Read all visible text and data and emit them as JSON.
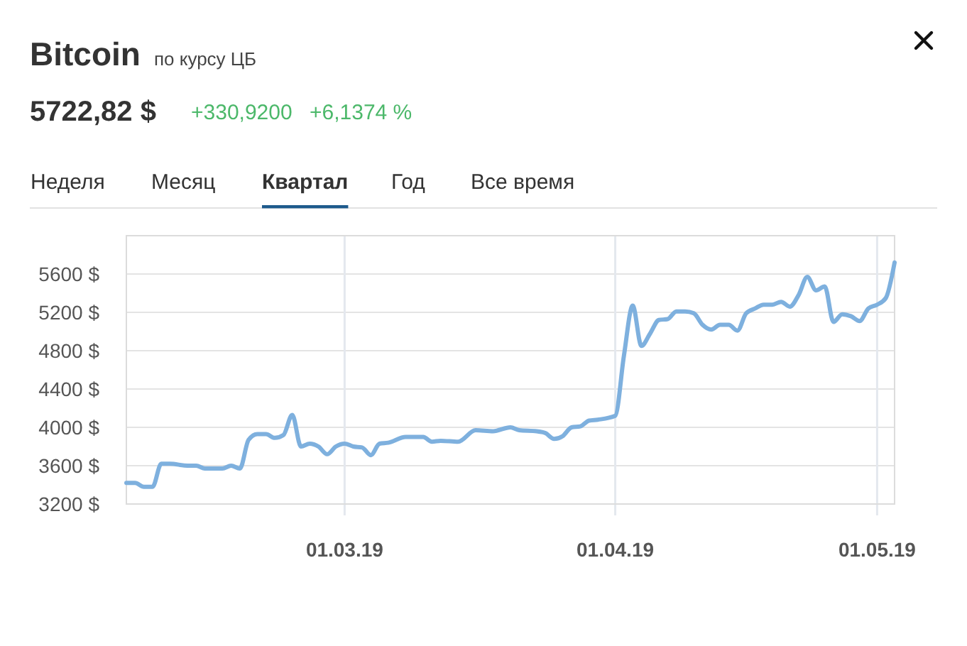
{
  "chart_data": {
    "type": "line",
    "title": "Bitcoin",
    "subtitle": "по курсу ЦБ",
    "annotations": [
      "5722,82 $",
      "+330,9200",
      "+6,1374 %",
      "Неделя",
      "Месяц",
      "Квартал",
      "Год",
      "Все время"
    ],
    "x": [
      "2019-02-04",
      "2019-02-05",
      "2019-02-06",
      "2019-02-07",
      "2019-02-08",
      "2019-02-09",
      "2019-02-11",
      "2019-02-12",
      "2019-02-13",
      "2019-02-15",
      "2019-02-16",
      "2019-02-17",
      "2019-02-18",
      "2019-02-19",
      "2019-02-20",
      "2019-02-21",
      "2019-02-22",
      "2019-02-23",
      "2019-02-24",
      "2019-02-25",
      "2019-02-26",
      "2019-02-27",
      "2019-02-28",
      "2019-03-01",
      "2019-03-02",
      "2019-03-03",
      "2019-03-04",
      "2019-03-05",
      "2019-03-06",
      "2019-03-08",
      "2019-03-10",
      "2019-03-11",
      "2019-03-12",
      "2019-03-14",
      "2019-03-16",
      "2019-03-18",
      "2019-03-20",
      "2019-03-21",
      "2019-03-23",
      "2019-03-24",
      "2019-03-25",
      "2019-03-26",
      "2019-03-27",
      "2019-03-28",
      "2019-03-29",
      "2019-03-30",
      "2019-04-01",
      "2019-04-02",
      "2019-04-03",
      "2019-04-04",
      "2019-04-05",
      "2019-04-06",
      "2019-04-07",
      "2019-04-08",
      "2019-04-09",
      "2019-04-10",
      "2019-04-11",
      "2019-04-12",
      "2019-04-13",
      "2019-04-14",
      "2019-04-15",
      "2019-04-16",
      "2019-04-17",
      "2019-04-18",
      "2019-04-19",
      "2019-04-20",
      "2019-04-21",
      "2019-04-22",
      "2019-04-23",
      "2019-04-24",
      "2019-04-25",
      "2019-04-26",
      "2019-04-27",
      "2019-04-28",
      "2019-04-29",
      "2019-04-30",
      "2019-05-01",
      "2019-05-02",
      "2019-05-03"
    ],
    "series": [
      {
        "color": "#7eb0de",
        "values": [
          3420,
          3420,
          3380,
          3380,
          3620,
          3620,
          3600,
          3600,
          3570,
          3570,
          3600,
          3570,
          3870,
          3930,
          3930,
          3890,
          3920,
          4130,
          3800,
          3830,
          3800,
          3720,
          3800,
          3830,
          3800,
          3790,
          3710,
          3830,
          3840,
          3900,
          3900,
          3850,
          3860,
          3850,
          3970,
          3960,
          4000,
          3970,
          3960,
          3940,
          3880,
          3910,
          4000,
          4010,
          4070,
          4080,
          4120,
          4750,
          5270,
          4850,
          4980,
          5120,
          5130,
          5210,
          5210,
          5190,
          5070,
          5020,
          5070,
          5070,
          5010,
          5190,
          5240,
          5280,
          5280,
          5310,
          5260,
          5380,
          5570,
          5430,
          5470,
          5100,
          5180,
          5160,
          5110,
          5240,
          5280,
          5350,
          5720
        ]
      }
    ],
    "xlim": [
      "2019-02-04",
      "2019-05-03"
    ],
    "xticks": [
      {
        "value": "2019-03-01",
        "label": "01.03.19"
      },
      {
        "value": "2019-04-01",
        "label": "01.04.19"
      },
      {
        "value": "2019-05-01",
        "label": "01.05.19"
      }
    ],
    "ylim": [
      3200,
      6000
    ],
    "yticks": [
      {
        "value": 3200,
        "label": "3200 $"
      },
      {
        "value": 3600,
        "label": "3600 $"
      },
      {
        "value": 4000,
        "label": "4000 $"
      },
      {
        "value": 4400,
        "label": "4400 $"
      },
      {
        "value": 4800,
        "label": "4800 $"
      },
      {
        "value": 5200,
        "label": "5200 $"
      },
      {
        "value": 5600,
        "label": "5600 $"
      }
    ],
    "grid": true,
    "marker": "none",
    "line_style": "solid"
  }
}
